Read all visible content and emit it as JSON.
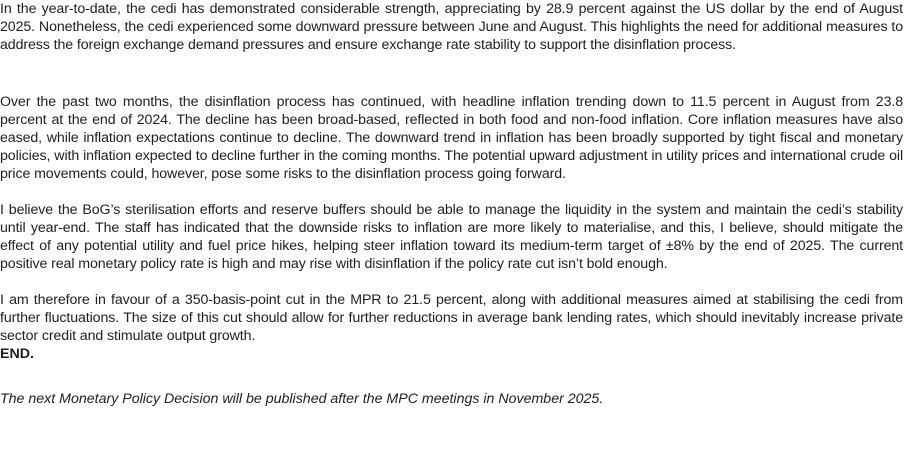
{
  "document": {
    "paragraphs": [
      "In the year-to-date, the cedi has demonstrated considerable strength, appreciating by 28.9 percent against the US dollar by the end of  August  2025. Nonetheless, the cedi experienced some downward pressure between June and August. This highlights the need for additional measures to address the foreign exchange demand pressures and ensure exchange rate stability to support the disinflation process.",
      "Over the past two months, the disinflation process has continued, with headline inflation trending down to 11.5 percent in August from 23.8 percent at the end of 2024. The decline has been broad-based, reflected in both food and non-food inflation. Core inflation measures have also eased, while inflation expectations continue to decline. The downward trend in inflation has been broadly supported by tight fiscal and monetary policies, with inflation expected to decline further in the coming months. The potential upward adjustment in utility prices and international crude oil price movements could, however, pose some risks to the disinflation process going forward.",
      "I believe the BoG’s sterilisation efforts and reserve buffers should be able to manage the liquidity in the system and maintain the cedi’s stability until year-end. The staff has indicated that the downside risks to inflation are more likely to materialise, and this, I believe, should mitigate the effect of any potential utility and fuel price hikes, helping steer inflation toward its medium-term target of ±8% by the end of 2025. The current positive real monetary policy rate is high and may rise with disinflation if the policy rate cut isn’t bold enough.",
      "I am therefore in favour of a 350-basis-point cut in the MPR to 21.5 percent, along with additional measures aimed at stabilising the cedi from further fluctuations. The size of this cut should allow for further reductions in average bank lending rates, which should inevitably increase private sector credit and stimulate output growth."
    ],
    "end_marker": "END.",
    "footer_note": "The next Monetary Policy Decision will be published after the MPC meetings in November 2025."
  }
}
